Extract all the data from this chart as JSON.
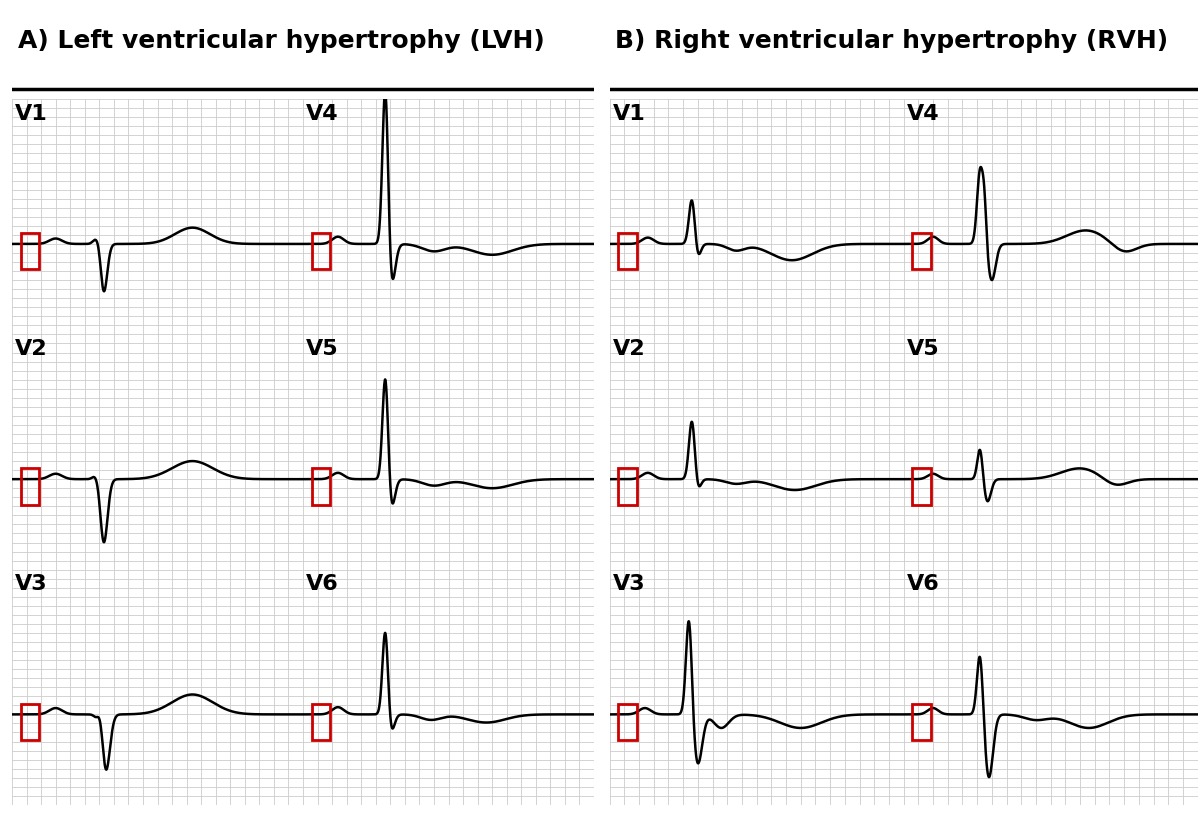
{
  "title_left": "A) Left ventricular hypertrophy (LVH)",
  "title_right": "B) Right ventricular hypertrophy (RVH)",
  "title_fontsize": 18,
  "grid_color": "#cccccc",
  "ecg_color": "#000000",
  "red_color": "#cc0000",
  "bg_color": "#ffffff",
  "lead_labels": [
    "V1",
    "V2",
    "V3",
    "V4",
    "V5",
    "V6"
  ]
}
